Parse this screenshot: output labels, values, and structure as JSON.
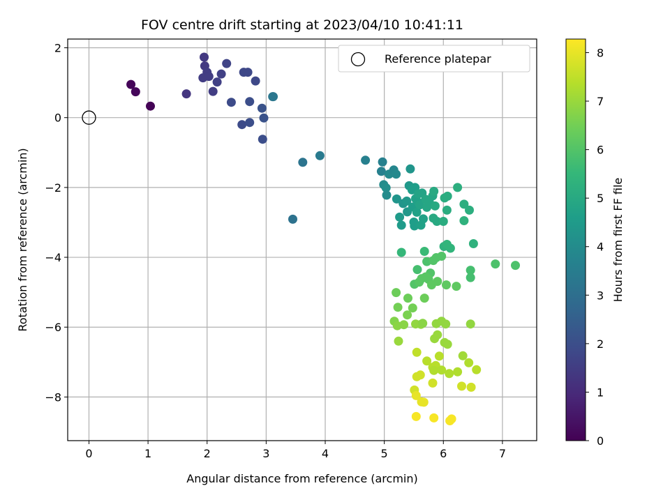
{
  "chart_data": {
    "type": "scatter",
    "title": "FOV centre drift starting at 2023/04/10 10:41:11",
    "xlabel": "Angular distance from reference (arcmin)",
    "ylabel": "Rotation from reference (arcmin)",
    "xlim": [
      -0.36,
      7.58
    ],
    "ylim": [
      -9.25,
      2.25
    ],
    "xticks": [
      0,
      1,
      2,
      3,
      4,
      5,
      6,
      7
    ],
    "yticks": [
      2,
      0,
      -2,
      -4,
      -6,
      -8
    ],
    "ytick_labels": [
      "2",
      "0",
      "−2",
      "−4",
      "−6",
      "−8"
    ],
    "grid": true,
    "legend": {
      "location": "upper right",
      "entries": [
        "Reference platepar"
      ]
    },
    "reference_point": {
      "x": 0,
      "y": 0,
      "marker": "open circle",
      "label": "Reference platepar"
    },
    "colorbar": {
      "label": "Hours from first FF file",
      "range": [
        0,
        8.28
      ],
      "ticks": [
        0,
        1,
        2,
        3,
        4,
        5,
        6,
        7,
        8
      ],
      "colormap": "viridis",
      "colors": [
        "#440154",
        "#482878",
        "#3e4989",
        "#31688e",
        "#26828e",
        "#1f9e89",
        "#35b779",
        "#6ece58",
        "#b5de2b",
        "#fde725"
      ]
    },
    "points": [
      [
        0.71,
        0.95,
        0.1
      ],
      [
        0.79,
        0.74,
        0.15
      ],
      [
        1.04,
        0.33,
        0.05
      ],
      [
        1.65,
        0.68,
        1.3
      ],
      [
        1.95,
        1.73,
        1.4
      ],
      [
        1.96,
        1.48,
        1.4
      ],
      [
        2.0,
        1.3,
        1.5
      ],
      [
        1.93,
        1.14,
        1.5
      ],
      [
        2.03,
        1.18,
        1.5
      ],
      [
        2.1,
        0.75,
        1.5
      ],
      [
        2.17,
        1.02,
        1.6
      ],
      [
        2.24,
        1.25,
        1.6
      ],
      [
        2.33,
        1.55,
        1.7
      ],
      [
        2.41,
        0.44,
        1.9
      ],
      [
        2.59,
        -0.2,
        1.9
      ],
      [
        2.62,
        1.3,
        1.8
      ],
      [
        2.69,
        1.3,
        1.8
      ],
      [
        2.72,
        0.46,
        2.0
      ],
      [
        2.72,
        -0.14,
        2.0
      ],
      [
        2.82,
        1.05,
        1.8
      ],
      [
        2.93,
        0.27,
        2.1
      ],
      [
        2.94,
        -0.62,
        2.0
      ],
      [
        2.96,
        -0.01,
        2.1
      ],
      [
        3.11,
        0.6,
        3.3
      ],
      [
        3.12,
        0.6,
        3.3
      ],
      [
        3.45,
        -2.91,
        3.1
      ],
      [
        3.62,
        -1.28,
        3.2
      ],
      [
        3.91,
        -1.09,
        3.4
      ],
      [
        4.68,
        -1.22,
        3.6
      ],
      [
        4.95,
        -1.54,
        3.6
      ],
      [
        4.97,
        -1.27,
        3.6
      ],
      [
        4.99,
        -1.92,
        4.0
      ],
      [
        5.03,
        -2.01,
        4.1
      ],
      [
        5.04,
        -2.22,
        4.0
      ],
      [
        5.08,
        -1.62,
        3.9
      ],
      [
        5.16,
        -1.5,
        3.8
      ],
      [
        5.2,
        -1.62,
        3.9
      ],
      [
        5.21,
        -2.33,
        4.3
      ],
      [
        5.26,
        -2.85,
        4.5
      ],
      [
        5.29,
        -3.08,
        4.5
      ],
      [
        5.32,
        -2.46,
        4.3
      ],
      [
        5.38,
        -2.39,
        4.4
      ],
      [
        5.39,
        -2.7,
        4.4
      ],
      [
        5.42,
        -1.95,
        4.4
      ],
      [
        5.44,
        -1.47,
        4.3
      ],
      [
        5.47,
        -2.07,
        4.6
      ],
      [
        5.48,
        -2.56,
        4.6
      ],
      [
        5.5,
        -2.99,
        4.6
      ],
      [
        5.51,
        -3.1,
        4.6
      ],
      [
        5.52,
        -2.0,
        4.6
      ],
      [
        5.53,
        -2.32,
        4.7
      ],
      [
        5.55,
        -2.71,
        4.7
      ],
      [
        5.57,
        -2.42,
        4.7
      ],
      [
        5.58,
        -2.18,
        4.8
      ],
      [
        5.6,
        -2.5,
        4.8
      ],
      [
        5.62,
        -3.08,
        4.7
      ],
      [
        5.64,
        -2.16,
        4.8
      ],
      [
        5.66,
        -2.9,
        4.7
      ],
      [
        5.7,
        -2.34,
        4.9
      ],
      [
        5.72,
        -2.57,
        4.9
      ],
      [
        5.76,
        -2.4,
        4.9
      ],
      [
        5.82,
        -2.24,
        4.9
      ],
      [
        5.83,
        -2.88,
        5.0
      ],
      [
        5.84,
        -2.11,
        5.0
      ],
      [
        5.86,
        -2.53,
        5.0
      ],
      [
        5.89,
        -2.97,
        5.0
      ],
      [
        6.0,
        -2.97,
        5.1
      ],
      [
        6.02,
        -2.3,
        5.1
      ],
      [
        6.06,
        -2.65,
        5.1
      ],
      [
        6.07,
        -2.25,
        5.1
      ],
      [
        6.01,
        -3.69,
        5.3
      ],
      [
        6.06,
        -3.63,
        5.4
      ],
      [
        6.12,
        -3.74,
        5.4
      ],
      [
        6.24,
        -2.0,
        5.2
      ],
      [
        6.35,
        -2.48,
        5.2
      ],
      [
        6.35,
        -2.95,
        5.3
      ],
      [
        6.44,
        -2.65,
        5.2
      ],
      [
        6.51,
        -3.61,
        5.3
      ],
      [
        5.29,
        -3.86,
        5.5
      ],
      [
        5.68,
        -3.83,
        5.6
      ],
      [
        5.56,
        -4.35,
        5.8
      ],
      [
        5.72,
        -4.12,
        5.9
      ],
      [
        5.78,
        -4.45,
        6.0
      ],
      [
        5.83,
        -4.09,
        6.0
      ],
      [
        5.88,
        -4.01,
        6.0
      ],
      [
        5.97,
        -3.97,
        6.0
      ],
      [
        6.46,
        -4.37,
        5.8
      ],
      [
        6.46,
        -4.58,
        5.8
      ],
      [
        6.88,
        -4.19,
        5.9
      ],
      [
        7.22,
        -4.23,
        5.9
      ],
      [
        5.51,
        -4.77,
        6.0
      ],
      [
        5.59,
        -4.71,
        6.1
      ],
      [
        5.63,
        -4.61,
        6.1
      ],
      [
        5.7,
        -4.56,
        6.1
      ],
      [
        5.75,
        -4.63,
        6.1
      ],
      [
        5.8,
        -4.79,
        6.2
      ],
      [
        5.9,
        -4.69,
        6.2
      ],
      [
        6.05,
        -4.79,
        6.2
      ],
      [
        6.22,
        -4.83,
        6.2
      ],
      [
        5.2,
        -5.01,
        6.4
      ],
      [
        5.4,
        -5.17,
        6.4
      ],
      [
        5.68,
        -5.17,
        6.4
      ],
      [
        5.23,
        -5.43,
        6.5
      ],
      [
        5.48,
        -5.45,
        6.5
      ],
      [
        5.39,
        -5.65,
        6.6
      ],
      [
        5.17,
        -5.83,
        6.7
      ],
      [
        5.22,
        -5.96,
        6.8
      ],
      [
        5.33,
        -5.93,
        6.8
      ],
      [
        5.53,
        -5.91,
        6.9
      ],
      [
        5.62,
        -5.92,
        6.9
      ],
      [
        5.65,
        -5.89,
        6.8
      ],
      [
        5.88,
        -5.9,
        6.9
      ],
      [
        5.97,
        -5.83,
        6.9
      ],
      [
        6.04,
        -5.91,
        6.9
      ],
      [
        6.46,
        -5.91,
        6.9
      ],
      [
        5.24,
        -6.4,
        7.0
      ],
      [
        5.85,
        -6.33,
        7.0
      ],
      [
        5.9,
        -6.22,
        7.0
      ],
      [
        6.02,
        -6.44,
        7.0
      ],
      [
        6.07,
        -6.49,
        7.0
      ],
      [
        6.33,
        -6.82,
        7.1
      ],
      [
        5.55,
        -6.72,
        7.5
      ],
      [
        5.72,
        -6.97,
        7.4
      ],
      [
        5.93,
        -6.83,
        7.4
      ],
      [
        5.82,
        -7.15,
        7.4
      ],
      [
        5.87,
        -7.1,
        7.4
      ],
      [
        5.84,
        -7.24,
        7.3
      ],
      [
        5.97,
        -7.23,
        7.3
      ],
      [
        6.1,
        -7.33,
        7.3
      ],
      [
        6.24,
        -7.28,
        7.3
      ],
      [
        6.43,
        -7.02,
        7.3
      ],
      [
        6.56,
        -7.22,
        7.4
      ],
      [
        5.51,
        -7.8,
        7.7
      ],
      [
        5.55,
        -7.42,
        7.7
      ],
      [
        5.61,
        -7.37,
        7.7
      ],
      [
        5.82,
        -7.6,
        7.7
      ],
      [
        6.31,
        -7.69,
        7.7
      ],
      [
        6.47,
        -7.72,
        7.7
      ],
      [
        5.54,
        -7.96,
        8.0
      ],
      [
        5.63,
        -8.14,
        8.0
      ],
      [
        5.67,
        -8.15,
        8.0
      ],
      [
        5.54,
        -8.56,
        8.2
      ],
      [
        5.84,
        -8.6,
        8.2
      ],
      [
        6.11,
        -8.68,
        8.2
      ],
      [
        6.14,
        -8.63,
        8.2
      ]
    ]
  }
}
